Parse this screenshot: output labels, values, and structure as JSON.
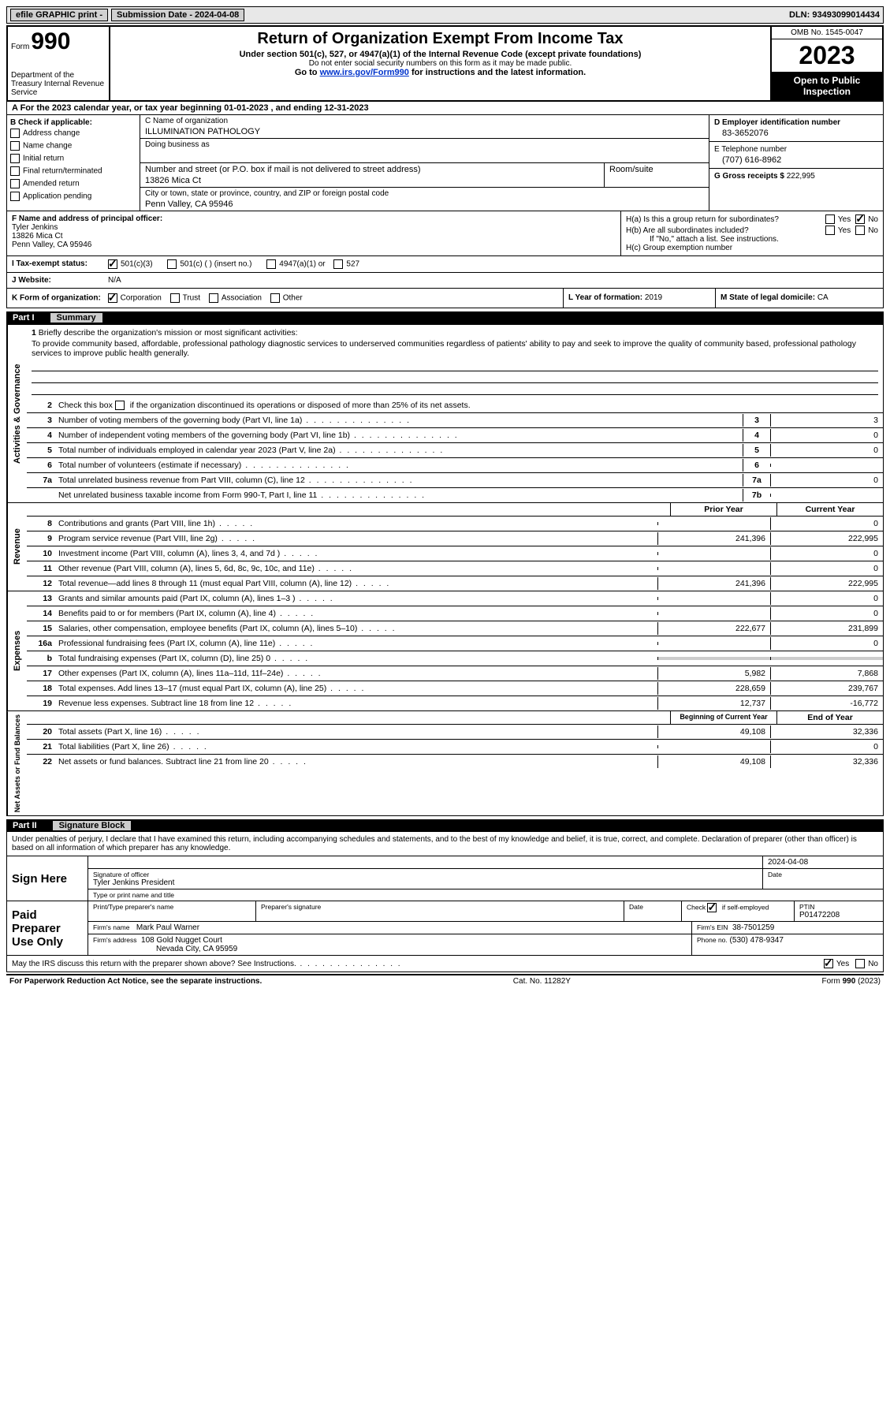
{
  "topbar": {
    "efile_label": "efile GRAPHIC print -",
    "submission_label": "Submission Date - 2024-04-08",
    "dln": "DLN: 93493099014434"
  },
  "header": {
    "form_word": "Form",
    "form_num": "990",
    "dept": "Department of the Treasury Internal Revenue Service",
    "title": "Return of Organization Exempt From Income Tax",
    "sub1": "Under section 501(c), 527, or 4947(a)(1) of the Internal Revenue Code (except private foundations)",
    "sub2": "Do not enter social security numbers on this form as it may be made public.",
    "sub3_pre": "Go to ",
    "sub3_link": "www.irs.gov/Form990",
    "sub3_post": " for instructions and the latest information.",
    "omb": "OMB No. 1545-0047",
    "year": "2023",
    "inspection": "Open to Public Inspection"
  },
  "section_a": "A For the 2023 calendar year, or tax year beginning 01-01-2023   , and ending 12-31-2023",
  "section_b": {
    "title": "B Check if applicable:",
    "opts": [
      "Address change",
      "Name change",
      "Initial return",
      "Final return/terminated",
      "Amended return",
      "Application pending"
    ]
  },
  "section_c": {
    "name_lbl": "C Name of organization",
    "name": "ILLUMINATION PATHOLOGY",
    "dba_lbl": "Doing business as",
    "addr_lbl": "Number and street (or P.O. box if mail is not delivered to street address)",
    "room_lbl": "Room/suite",
    "addr": "13826 Mica Ct",
    "city_lbl": "City or town, state or province, country, and ZIP or foreign postal code",
    "city": "Penn Valley, CA  95946"
  },
  "section_d": {
    "ein_lbl": "D Employer identification number",
    "ein": "83-3652076",
    "phone_lbl": "E Telephone number",
    "phone": "(707) 616-8962",
    "gross_lbl": "G Gross receipts $",
    "gross": "222,995"
  },
  "section_f": {
    "lbl": "F  Name and address of principal officer:",
    "name": "Tyler Jenkins",
    "addr1": "13826 Mica Ct",
    "addr2": "Penn Valley, CA  95946"
  },
  "section_h": {
    "ha": "H(a)  Is this a group return for subordinates?",
    "hb": "H(b)  Are all subordinates included?",
    "hb_note": "If \"No,\" attach a list. See instructions.",
    "hc": "H(c)  Group exemption number",
    "yes": "Yes",
    "no": "No"
  },
  "section_i": {
    "lbl": "I   Tax-exempt status:",
    "o1": "501(c)(3)",
    "o2": "501(c) (  ) (insert no.)",
    "o3": "4947(a)(1) or",
    "o4": "527"
  },
  "section_j": {
    "lbl": "J   Website:",
    "val": "N/A"
  },
  "section_k": {
    "lbl": "K Form of organization:",
    "o1": "Corporation",
    "o2": "Trust",
    "o3": "Association",
    "o4": "Other"
  },
  "section_l": {
    "lbl": "L Year of formation:",
    "val": "2019"
  },
  "section_m": {
    "lbl": "M State of legal domicile:",
    "val": "CA"
  },
  "part1": {
    "num": "Part I",
    "title": "Summary"
  },
  "summary": {
    "vlabels": {
      "gov": "Activities & Governance",
      "rev": "Revenue",
      "exp": "Expenses",
      "net": "Net Assets or Fund Balances"
    },
    "l1_lbl": "Briefly describe the organization's mission or most significant activities:",
    "l1_num": "1",
    "mission": "To provide community based, affordable, professional pathology diagnostic services to underserved communities regardless of patients' ability to pay and seek to improve the quality of community based, professional pathology services to improve public health generally.",
    "l2_num": "2",
    "l2": "Check this box          if the organization discontinued its operations or disposed of more than 25% of its net assets.",
    "lines_gov": [
      {
        "n": "3",
        "d": "Number of voting members of the governing body (Part VI, line 1a)",
        "box": "3",
        "v": "3"
      },
      {
        "n": "4",
        "d": "Number of independent voting members of the governing body (Part VI, line 1b)",
        "box": "4",
        "v": "0"
      },
      {
        "n": "5",
        "d": "Total number of individuals employed in calendar year 2023 (Part V, line 2a)",
        "box": "5",
        "v": "0"
      },
      {
        "n": "6",
        "d": "Total number of volunteers (estimate if necessary)",
        "box": "6",
        "v": ""
      },
      {
        "n": "7a",
        "d": "Total unrelated business revenue from Part VIII, column (C), line 12",
        "box": "7a",
        "v": "0"
      },
      {
        "n": "",
        "d": "Net unrelated business taxable income from Form 990-T, Part I, line 11",
        "box": "7b",
        "v": ""
      }
    ],
    "yh_prior": "Prior Year",
    "yh_current": "Current Year",
    "lines_rev": [
      {
        "n": "8",
        "d": "Contributions and grants (Part VIII, line 1h)",
        "p": "",
        "c": "0"
      },
      {
        "n": "9",
        "d": "Program service revenue (Part VIII, line 2g)",
        "p": "241,396",
        "c": "222,995"
      },
      {
        "n": "10",
        "d": "Investment income (Part VIII, column (A), lines 3, 4, and 7d )",
        "p": "",
        "c": "0"
      },
      {
        "n": "11",
        "d": "Other revenue (Part VIII, column (A), lines 5, 6d, 8c, 9c, 10c, and 11e)",
        "p": "",
        "c": "0"
      },
      {
        "n": "12",
        "d": "Total revenue—add lines 8 through 11 (must equal Part VIII, column (A), line 12)",
        "p": "241,396",
        "c": "222,995"
      }
    ],
    "lines_exp": [
      {
        "n": "13",
        "d": "Grants and similar amounts paid (Part IX, column (A), lines 1–3 )",
        "p": "",
        "c": "0"
      },
      {
        "n": "14",
        "d": "Benefits paid to or for members (Part IX, column (A), line 4)",
        "p": "",
        "c": "0"
      },
      {
        "n": "15",
        "d": "Salaries, other compensation, employee benefits (Part IX, column (A), lines 5–10)",
        "p": "222,677",
        "c": "231,899"
      },
      {
        "n": "16a",
        "d": "Professional fundraising fees (Part IX, column (A), line 11e)",
        "p": "",
        "c": "0"
      },
      {
        "n": "b",
        "d": "Total fundraising expenses (Part IX, column (D), line 25) 0",
        "p": "shaded",
        "c": "shaded"
      },
      {
        "n": "17",
        "d": "Other expenses (Part IX, column (A), lines 11a–11d, 11f–24e)",
        "p": "5,982",
        "c": "7,868"
      },
      {
        "n": "18",
        "d": "Total expenses. Add lines 13–17 (must equal Part IX, column (A), line 25)",
        "p": "228,659",
        "c": "239,767"
      },
      {
        "n": "19",
        "d": "Revenue less expenses. Subtract line 18 from line 12",
        "p": "12,737",
        "c": "-16,772"
      }
    ],
    "yh_begin": "Beginning of Current Year",
    "yh_end": "End of Year",
    "lines_net": [
      {
        "n": "20",
        "d": "Total assets (Part X, line 16)",
        "p": "49,108",
        "c": "32,336"
      },
      {
        "n": "21",
        "d": "Total liabilities (Part X, line 26)",
        "p": "",
        "c": "0"
      },
      {
        "n": "22",
        "d": "Net assets or fund balances. Subtract line 21 from line 20",
        "p": "49,108",
        "c": "32,336"
      }
    ]
  },
  "part2": {
    "num": "Part II",
    "title": "Signature Block"
  },
  "sig": {
    "decl": "Under penalties of perjury, I declare that I have examined this return, including accompanying schedules and statements, and to the best of my knowledge and belief, it is true, correct, and complete. Declaration of preparer (other than officer) is based on all information of which preparer has any knowledge.",
    "sign_here": "Sign Here",
    "sig_officer_lbl": "Signature of officer",
    "sig_name": "Tyler Jenkins  President",
    "sig_type_lbl": "Type or print name and title",
    "date_lbl": "Date",
    "date": "2024-04-08",
    "paid": "Paid Preparer Use Only",
    "prep_name_lbl": "Print/Type preparer's name",
    "prep_sig_lbl": "Preparer's signature",
    "check_lbl": "Check          if self-employed",
    "ptin_lbl": "PTIN",
    "ptin": "P01472208",
    "firm_name_lbl": "Firm's name",
    "firm_name": "Mark Paul Warner",
    "firm_ein_lbl": "Firm's EIN",
    "firm_ein": "38-7501259",
    "firm_addr_lbl": "Firm's address",
    "firm_addr1": "108 Gold Nugget Court",
    "firm_addr2": "Nevada City, CA  95959",
    "firm_phone_lbl": "Phone no.",
    "firm_phone": "(530) 478-9347",
    "discuss": "May the IRS discuss this return with the preparer shown above? See Instructions."
  },
  "footer": {
    "left": "For Paperwork Reduction Act Notice, see the separate instructions.",
    "mid": "Cat. No. 11282Y",
    "right": "Form 990 (2023)"
  }
}
